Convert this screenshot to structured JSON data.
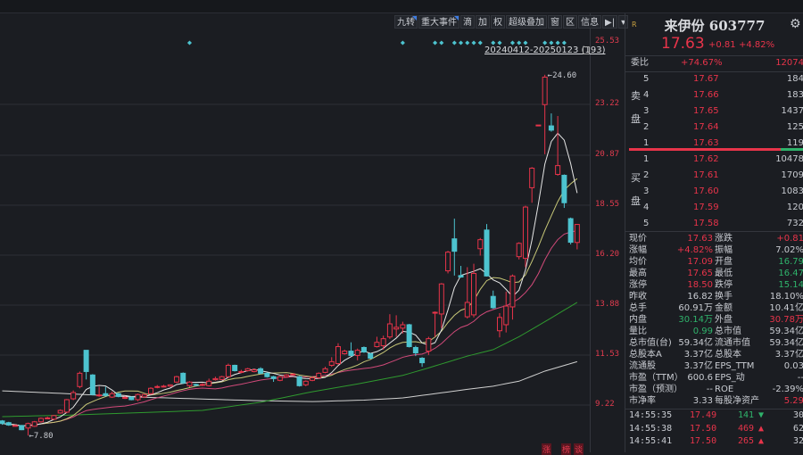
{
  "toolbar": {
    "items": [
      "九转",
      "重大事件",
      "滴",
      "加",
      "权",
      "超级叠加",
      "窗",
      "区",
      "信息"
    ],
    "next_icon": "play-end-icon",
    "menu_icon": "caret-down-icon"
  },
  "range_label": "20240412-20250123 (193)",
  "axis_labels": [
    "25.53",
    "23.22",
    "20.87",
    "18.55",
    "16.20",
    "13.88",
    "11.53",
    "9.22"
  ],
  "high_label": "24.60",
  "low_label": "7.80",
  "bottom_labels": [
    "涨",
    "榜",
    "谈"
  ],
  "colors": {
    "up": "#e8344a",
    "down": "#4dc3cf",
    "ma5": "#e6e6e6",
    "ma10": "#c8c878",
    "ma20": "#d24a7a",
    "ma60": "#2f9a2f",
    "ma120": "#d0d0d0",
    "signal": "#4dc3cf"
  },
  "chart_data": {
    "type": "candlestick",
    "ylim": [
      7.0,
      26.0
    ],
    "grid": true,
    "ohlc": [
      [
        8.48,
        8.36,
        8.52,
        8.3
      ],
      [
        8.4,
        8.29,
        8.44,
        8.25
      ],
      [
        8.27,
        8.27,
        8.31,
        8.23
      ],
      [
        8.27,
        8.07,
        8.29,
        8.05
      ],
      [
        8.15,
        8.36,
        8.4,
        7.8
      ],
      [
        8.23,
        8.44,
        8.48,
        8.2
      ],
      [
        8.44,
        8.6,
        8.64,
        8.4
      ],
      [
        8.6,
        8.62,
        8.68,
        8.56
      ],
      [
        8.56,
        8.73,
        8.76,
        8.52
      ],
      [
        8.85,
        8.97,
        9.02,
        8.82
      ],
      [
        8.89,
        9.47,
        9.5,
        8.85
      ],
      [
        9.51,
        9.8,
        9.9,
        9.45
      ],
      [
        10.08,
        10.7,
        10.78,
        10.0
      ],
      [
        11.77,
        10.78,
        11.77,
        10.41
      ],
      [
        10.62,
        9.71,
        10.66,
        9.67
      ],
      [
        9.67,
        9.69,
        10.08,
        9.6
      ],
      [
        9.75,
        9.67,
        10.08,
        9.62
      ],
      [
        9.59,
        9.75,
        9.85,
        9.55
      ],
      [
        9.75,
        9.62,
        9.78,
        9.58
      ],
      [
        9.55,
        9.57,
        9.65,
        9.5
      ],
      [
        9.59,
        9.47,
        9.62,
        9.44
      ],
      [
        9.47,
        9.71,
        9.75,
        9.4
      ],
      [
        9.6,
        9.71,
        9.74,
        9.55
      ],
      [
        9.75,
        10.0,
        10.05,
        9.7
      ],
      [
        10.06,
        10.08,
        10.15,
        10.0
      ],
      [
        10.08,
        10.1,
        10.16,
        10.04
      ],
      [
        10.1,
        10.16,
        10.18,
        10.06
      ],
      [
        10.29,
        10.54,
        10.58,
        10.25
      ],
      [
        10.7,
        10.25,
        10.74,
        10.2
      ],
      [
        10.12,
        10.29,
        10.33,
        10.05
      ],
      [
        10.18,
        10.16,
        10.22,
        10.1
      ],
      [
        10.16,
        10.18,
        10.24,
        10.1
      ],
      [
        10.12,
        10.33,
        10.45,
        10.08
      ],
      [
        10.4,
        10.45,
        10.54,
        10.36
      ],
      [
        10.41,
        10.54,
        10.58,
        10.38
      ],
      [
        10.54,
        11.07,
        11.15,
        10.5
      ],
      [
        11.07,
        10.82,
        11.1,
        10.78
      ],
      [
        10.74,
        10.78,
        10.86,
        10.7
      ],
      [
        10.82,
        10.91,
        10.95,
        10.78
      ],
      [
        10.78,
        10.86,
        10.92,
        10.74
      ],
      [
        10.91,
        10.7,
        10.98,
        10.66
      ],
      [
        10.7,
        10.54,
        10.74,
        10.5
      ],
      [
        10.54,
        10.45,
        10.58,
        10.3
      ],
      [
        10.37,
        10.54,
        10.58,
        10.33
      ],
      [
        10.54,
        10.62,
        10.66,
        10.5
      ],
      [
        10.62,
        10.66,
        10.7,
        10.58
      ],
      [
        10.54,
        10.12,
        10.58,
        10.08
      ],
      [
        10.16,
        10.33,
        10.37,
        10.1
      ],
      [
        10.37,
        10.49,
        10.54,
        10.33
      ],
      [
        10.49,
        10.7,
        10.74,
        10.45
      ],
      [
        10.74,
        10.91,
        11.0,
        10.7
      ],
      [
        11.07,
        11.24,
        11.45,
        11.0
      ],
      [
        11.15,
        11.94,
        12.1,
        11.1
      ],
      [
        11.61,
        11.73,
        11.8,
        11.57
      ],
      [
        11.73,
        11.53,
        12.14,
        11.5
      ],
      [
        11.53,
        11.77,
        11.85,
        11.3
      ],
      [
        11.9,
        11.69,
        11.95,
        11.65
      ],
      [
        11.61,
        11.4,
        11.65,
        11.36
      ],
      [
        11.94,
        12.14,
        12.4,
        11.9
      ],
      [
        11.98,
        12.31,
        12.45,
        11.8
      ],
      [
        12.39,
        13.0,
        13.45,
        12.3
      ],
      [
        12.76,
        12.84,
        13.4,
        12.4
      ],
      [
        12.8,
        12.96,
        13.1,
        12.55
      ],
      [
        12.96,
        11.94,
        13.0,
        11.9
      ],
      [
        11.9,
        11.65,
        11.98,
        11.5
      ],
      [
        11.4,
        11.19,
        11.45,
        11.0
      ],
      [
        11.73,
        12.31,
        12.4,
        11.55
      ],
      [
        13.5,
        13.54,
        13.58,
        12.39
      ],
      [
        13.46,
        14.86,
        14.9,
        12.8
      ],
      [
        15.47,
        16.34,
        16.4,
        15.35
      ],
      [
        16.96,
        16.38,
        17.9,
        15.25
      ],
      [
        15.25,
        15.18,
        15.7,
        15.15
      ],
      [
        13.33,
        14.0,
        15.64,
        13.25
      ],
      [
        13.42,
        15.35,
        15.8,
        13.3
      ],
      [
        16.5,
        16.92,
        17.0,
        16.18
      ],
      [
        17.37,
        15.23,
        17.65,
        15.2
      ],
      [
        14.28,
        13.75,
        14.55,
        13.7
      ],
      [
        12.68,
        13.3,
        13.5,
        12.37
      ],
      [
        12.96,
        13.83,
        14.5,
        12.6
      ],
      [
        13.79,
        15.23,
        15.3,
        13.2
      ],
      [
        16.13,
        16.75,
        16.8,
        16.0
      ],
      [
        16.05,
        18.44,
        18.5,
        15.64
      ],
      [
        19.34,
        20.25,
        20.3,
        18.64
      ],
      [
        22.26,
        22.26,
        22.26,
        22.26
      ],
      [
        23.21,
        24.49,
        24.6,
        20.9
      ],
      [
        22.22,
        22.02,
        22.8,
        21.95
      ],
      [
        19.96,
        20.37,
        22.68,
        19.9
      ],
      [
        19.92,
        18.64,
        19.96,
        18.4
      ],
      [
        17.9,
        16.8,
        17.95,
        16.7
      ],
      [
        16.79,
        17.63,
        17.65,
        16.47
      ]
    ],
    "ma60_samples": [
      [
        0,
        8.68
      ],
      [
        10,
        8.75
      ],
      [
        20,
        8.85
      ],
      [
        31,
        8.97
      ],
      [
        40,
        9.35
      ],
      [
        48,
        9.84
      ],
      [
        55,
        10.2
      ],
      [
        62,
        10.6
      ],
      [
        66,
        10.95
      ],
      [
        72,
        11.5
      ],
      [
        76,
        11.8
      ],
      [
        80,
        12.4
      ],
      [
        84,
        13.1
      ],
      [
        89,
        14.0
      ]
    ],
    "ma120_samples": [
      [
        0,
        9.88
      ],
      [
        10,
        9.75
      ],
      [
        20,
        9.6
      ],
      [
        30,
        9.51
      ],
      [
        40,
        9.42
      ],
      [
        48,
        9.38
      ],
      [
        56,
        9.45
      ],
      [
        62,
        9.55
      ],
      [
        66,
        9.71
      ],
      [
        72,
        9.95
      ],
      [
        76,
        10.1
      ],
      [
        80,
        10.33
      ],
      [
        84,
        10.8
      ],
      [
        89,
        11.24
      ]
    ],
    "signal_indices": [
      29,
      62,
      67,
      68,
      70,
      71,
      72,
      73,
      74,
      76,
      77,
      79,
      80,
      81,
      84,
      85,
      86,
      87
    ]
  },
  "quote": {
    "name": "来伊份 603777",
    "price": "17.63",
    "change": "+0.81",
    "pct": "+4.82%",
    "logo": "R",
    "webi_label": "委比",
    "webi_pct": "+74.67%",
    "webi_val": "12074",
    "sell_label": [
      "卖",
      "盘"
    ],
    "buy_label": [
      "买",
      "盘"
    ],
    "sells": [
      {
        "n": "5",
        "p": "17.67",
        "v": "184"
      },
      {
        "n": "4",
        "p": "17.66",
        "v": "183"
      },
      {
        "n": "3",
        "p": "17.65",
        "v": "1437"
      },
      {
        "n": "2",
        "p": "17.64",
        "v": "125"
      },
      {
        "n": "1",
        "p": "17.63",
        "v": "119"
      }
    ],
    "buys": [
      {
        "n": "1",
        "p": "17.62",
        "v": "10478"
      },
      {
        "n": "2",
        "p": "17.61",
        "v": "1709"
      },
      {
        "n": "3",
        "p": "17.60",
        "v": "1083"
      },
      {
        "n": "4",
        "p": "17.59",
        "v": "120"
      },
      {
        "n": "5",
        "p": "17.58",
        "v": "732"
      }
    ]
  },
  "stats": [
    {
      "l1": "现价",
      "v1": "17.63",
      "c1": "r",
      "l2": "涨跌",
      "v2": "+0.81",
      "c2": "r"
    },
    {
      "l1": "涨幅",
      "v1": "+4.82%",
      "c1": "r",
      "l2": "振幅",
      "v2": "7.02%",
      "c2": "w"
    },
    {
      "l1": "均价",
      "v1": "17.09",
      "c1": "r",
      "l2": "开盘",
      "v2": "16.79",
      "c2": "g"
    },
    {
      "l1": "最高",
      "v1": "17.65",
      "c1": "r",
      "l2": "最低",
      "v2": "16.47",
      "c2": "g"
    },
    {
      "l1": "涨停",
      "v1": "18.50",
      "c1": "r",
      "l2": "跌停",
      "v2": "15.14",
      "c2": "g"
    },
    {
      "l1": "昨收",
      "v1": "16.82",
      "c1": "w",
      "l2": "换手",
      "v2": "18.10%",
      "c2": "w"
    },
    {
      "l1": "总手",
      "v1": "60.91万",
      "c1": "w",
      "l2": "金额",
      "v2": "10.41亿",
      "c2": "w"
    },
    {
      "l1": "内盘",
      "v1": "30.14万",
      "c1": "g",
      "l2": "外盘",
      "v2": "30.78万",
      "c2": "r"
    },
    {
      "l1": "量比",
      "v1": "0.99",
      "c1": "g",
      "l2": "总市值",
      "v2": "59.34亿",
      "c2": "w"
    },
    {
      "l1": "总市值(台)",
      "v1": "59.34亿",
      "c1": "w",
      "l2": "流通市值",
      "v2": "59.34亿",
      "c2": "w"
    },
    {
      "l1": "总股本A",
      "v1": "3.37亿",
      "c1": "w",
      "l2": "总股本",
      "v2": "3.37亿",
      "c2": "w"
    },
    {
      "l1": "流通股",
      "v1": "3.37亿",
      "c1": "w",
      "l2": "EPS_TTM",
      "v2": "0.03",
      "c2": "w"
    },
    {
      "l1": "市盈（TTM）",
      "v1": "600.6",
      "c1": "w",
      "l2": "EPS_动",
      "v2": "--",
      "c2": "w"
    },
    {
      "l1": "市盈（预测）",
      "v1": "--",
      "c1": "w",
      "l2": "ROE",
      "v2": "-2.39%",
      "c2": "w"
    },
    {
      "l1": "市净率",
      "v1": "3.33",
      "c1": "w",
      "l2": "每股净资产",
      "v2": "5.29",
      "c2": "r"
    }
  ],
  "ticks": [
    {
      "t": "14:55:35",
      "p": "17.49",
      "v": "141",
      "dir": "down",
      "n": "30"
    },
    {
      "t": "14:55:38",
      "p": "17.50",
      "v": "469",
      "dir": "up",
      "n": "62"
    },
    {
      "t": "14:55:41",
      "p": "17.50",
      "v": "265",
      "dir": "up",
      "n": "32"
    }
  ]
}
